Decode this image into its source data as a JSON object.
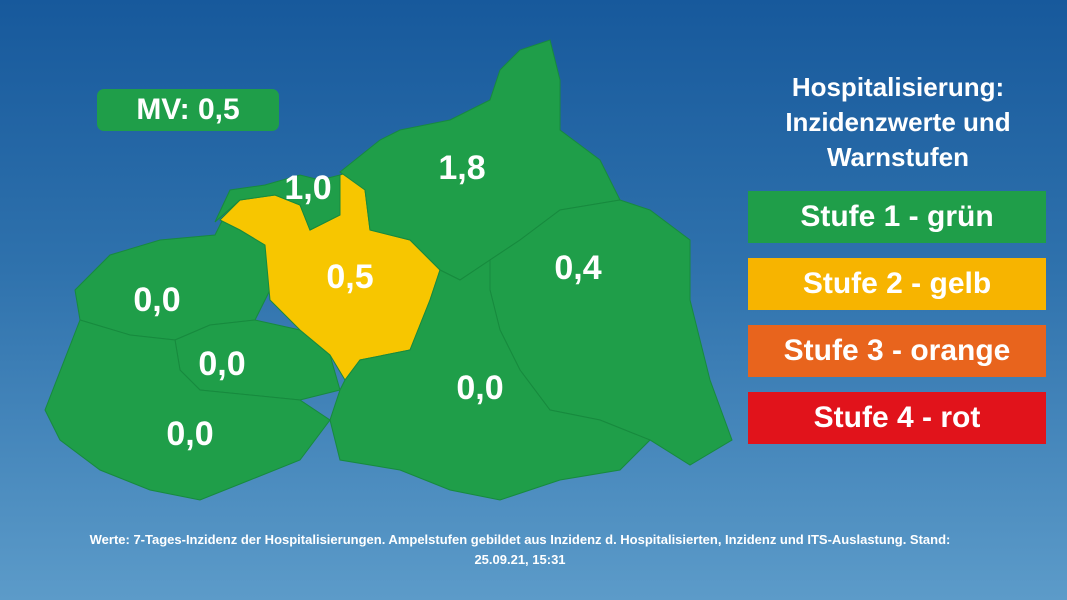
{
  "badge": "MV: 0,5",
  "regions": [
    {
      "label": "0,0",
      "color": "#1f9e49"
    },
    {
      "label": "0,0",
      "color": "#1f9e49"
    },
    {
      "label": "0,0",
      "color": "#1f9e49"
    },
    {
      "label": "0,5",
      "color": "#f7c600"
    },
    {
      "label": "1,0",
      "color": "#1f9e49"
    },
    {
      "label": "1,8",
      "color": "#1f9e49"
    },
    {
      "label": "0,4",
      "color": "#1f9e49"
    },
    {
      "label": "0,0",
      "color": "#1f9e49"
    }
  ],
  "legend": {
    "title": [
      "Hospitalisierung:",
      "Inzidenzwerte und",
      "Warnstufen"
    ],
    "items": [
      {
        "text": "Stufe 1 - grün",
        "color": "#1f9e49"
      },
      {
        "text": "Stufe 2 - gelb",
        "color": "#f7b400"
      },
      {
        "text": "Stufe 3 - orange",
        "color": "#e8641d"
      },
      {
        "text": "Stufe 4 - rot",
        "color": "#e1131b"
      }
    ]
  },
  "footer": [
    "Werte: 7-Tages-Inzidenz der Hospitalisierungen. Ampelstufen gebildet aus Inzidenz d. Hospitalisierten, Inzidenz und ITS-Auslastung. Stand:",
    "25.09.21, 15:31"
  ]
}
